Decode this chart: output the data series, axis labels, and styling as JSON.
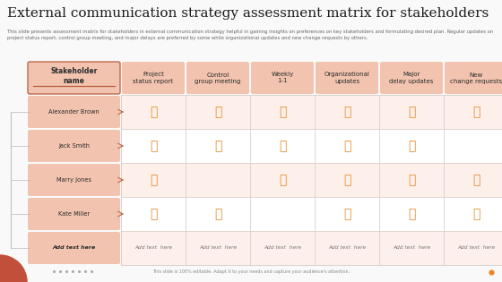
{
  "title": "External communication strategy assessment matrix for stakeholders",
  "subtitle": "This slide presents assessment matrix for stakeholders in external communication strategy helpful in gaining insights on preferences on key stakeholders and formulating desired plan. Regular updates on project status report, control group meeting, and major delays are preferred by some while organizational updates and new change requests by others.",
  "footer": "This slide is 100% editable. Adapt it to your needs and capture your audience's attention.",
  "bg_color": "#f9f9f9",
  "title_color": "#1a1a1a",
  "subtitle_color": "#666666",
  "header_bg": "#f2c4b0",
  "header_border_color": "#b85c3c",
  "name_cell_bg": "#f2c4b0",
  "grid_color": "#ddd0cc",
  "grid_outer": "#c8b0aa",
  "thumb_color": "#e8892a",
  "add_text_bg": "#f2c4b0",
  "row_bg_even": "#fdf0eb",
  "row_bg_odd": "#ffffff",
  "columns": [
    "Stakeholder\nname",
    "Project\nstatus report",
    "Control\ngroup meeting",
    "Weekly\n1-1",
    "Organizational\nupdates",
    "Major\ndelay updates",
    "New\nchange requests"
  ],
  "rows": [
    "Alexander Brown",
    "Jack Smith",
    "Marry Jones",
    "Kate Miller",
    "Add text here"
  ],
  "thumbs": [
    [
      1,
      1,
      1,
      1,
      1,
      1
    ],
    [
      1,
      1,
      1,
      1,
      1,
      0
    ],
    [
      1,
      0,
      1,
      1,
      1,
      1
    ],
    [
      1,
      1,
      0,
      1,
      1,
      1
    ],
    [
      0,
      0,
      0,
      0,
      0,
      0
    ]
  ],
  "footer_circle_color": "#c0503a",
  "footer_dot_color": "#e8892a"
}
